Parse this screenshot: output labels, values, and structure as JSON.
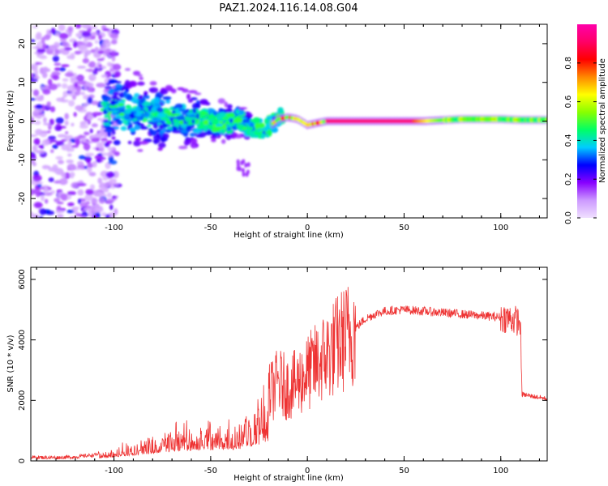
{
  "figure_title": "PAZ1.2024.116.14.08.G04",
  "chart_data": [
    {
      "type": "heatmap",
      "xlabel": "Height of straight line (km)",
      "ylabel": "Frequency (Hz)",
      "xlim": [
        -143,
        124
      ],
      "ylim": [
        -25,
        25
      ],
      "xticks": [
        -100,
        -50,
        0,
        50,
        100
      ],
      "yticks": [
        -20,
        -10,
        0,
        10,
        20
      ],
      "colorbar": {
        "label": "Normalized spectral amplitude",
        "range": [
          0,
          1
        ],
        "ticks": [
          "0.0",
          "0.2",
          "0.4",
          "0.6",
          "0.8"
        ],
        "colors": [
          "#f0e0ff",
          "#cc99ff",
          "#8800ff",
          "#0000ff",
          "#00ccff",
          "#00ff66",
          "#88ff00",
          "#ffff00",
          "#ff8800",
          "#ff0000",
          "#ff0066",
          "#ff00aa"
        ]
      },
      "ridge": {
        "x": [
          -100,
          -80,
          -60,
          -50,
          -40,
          -35,
          -30,
          -25,
          -20,
          -15,
          -10,
          -5,
          0,
          5,
          10,
          20,
          40,
          60,
          80,
          100,
          110,
          124
        ],
        "y": [
          3.0,
          1.5,
          0.5,
          0.0,
          -0.5,
          0.5,
          -1.5,
          -2.0,
          -1.5,
          0.5,
          1.0,
          0.5,
          -1.0,
          -0.5,
          0.0,
          0.0,
          0.0,
          0.0,
          0.5,
          0.5,
          0.3,
          0.3
        ]
      }
    },
    {
      "type": "line",
      "xlabel": "Height of straight line (km)",
      "ylabel": "SNR (10 * v/v)",
      "xlim": [
        -143,
        124
      ],
      "ylim": [
        0,
        6400
      ],
      "xticks": [
        -100,
        -50,
        0,
        50,
        100
      ],
      "yticks": [
        0,
        2000,
        4000,
        6000
      ],
      "series": [
        {
          "color": "#ee3333",
          "x": [
            -143,
            -130,
            -120,
            -110,
            -100,
            -90,
            -80,
            -70,
            -60,
            -50,
            -40,
            -35,
            -30,
            -25,
            -20,
            -15,
            -10,
            -5,
            0,
            5,
            10,
            15,
            20,
            25,
            30,
            35,
            40,
            50,
            60,
            70,
            80,
            90,
            100,
            105,
            110,
            111,
            115,
            120,
            124
          ],
          "y": [
            120,
            110,
            130,
            200,
            400,
            600,
            800,
            1000,
            1100,
            1150,
            1200,
            1300,
            1500,
            1800,
            2200,
            2600,
            2400,
            2600,
            2900,
            3200,
            3500,
            3800,
            4100,
            4400,
            4700,
            4850,
            4950,
            5000,
            4950,
            4900,
            4850,
            4800,
            4750,
            4700,
            4600,
            2200,
            2150,
            2100,
            2050
          ]
        }
      ]
    }
  ]
}
